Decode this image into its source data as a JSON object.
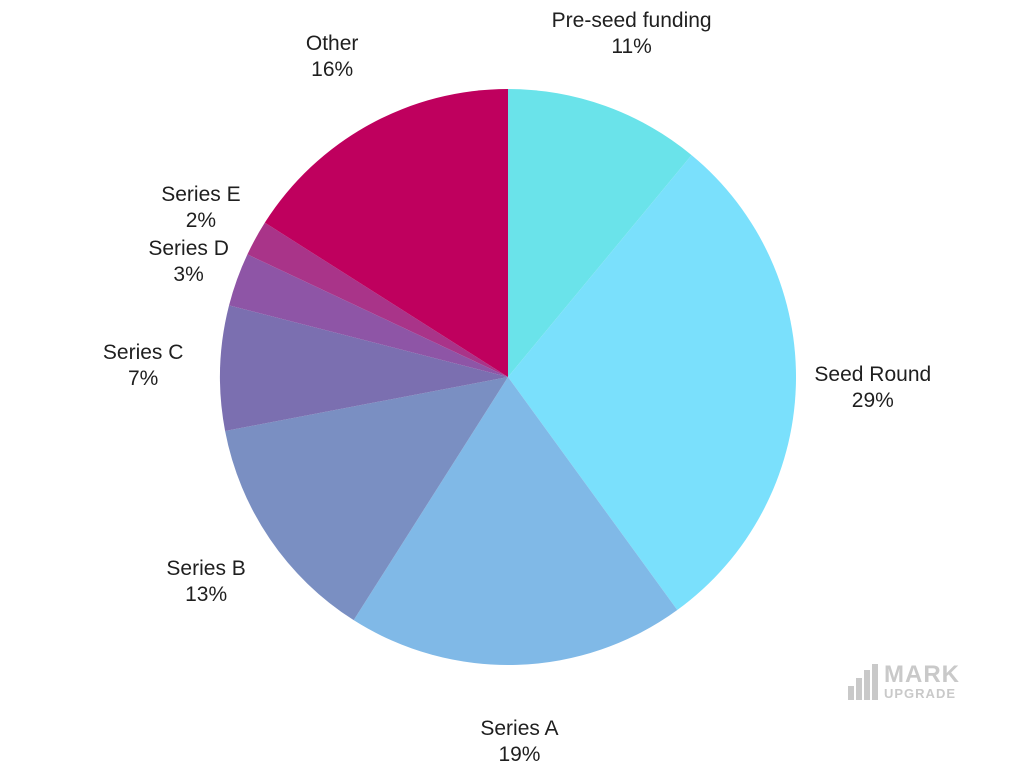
{
  "chart_data": {
    "type": "pie",
    "title": "",
    "slices": [
      {
        "label": "Pre-seed funding",
        "value": 11,
        "value_text": "11%",
        "color": "#6ae3ea"
      },
      {
        "label": "Seed Round",
        "value": 29,
        "value_text": "29%",
        "color": "#7ae0fc"
      },
      {
        "label": "Series A",
        "value": 19,
        "value_text": "19%",
        "color": "#80b9e7"
      },
      {
        "label": "Series B",
        "value": 13,
        "value_text": "13%",
        "color": "#7a8fc2"
      },
      {
        "label": "Series C",
        "value": 7,
        "value_text": "7%",
        "color": "#7b6fb0"
      },
      {
        "label": "Series D",
        "value": 3,
        "value_text": "3%",
        "color": "#8e55a6"
      },
      {
        "label": "Series E",
        "value": 2,
        "value_text": "2%",
        "color": "#a93489"
      },
      {
        "label": "Other",
        "value": 16,
        "value_text": "16%",
        "color": "#bf005e"
      }
    ]
  },
  "watermark": {
    "line1": "MARK",
    "line2": "UPGRADE",
    "color": "#c9c9c9"
  }
}
